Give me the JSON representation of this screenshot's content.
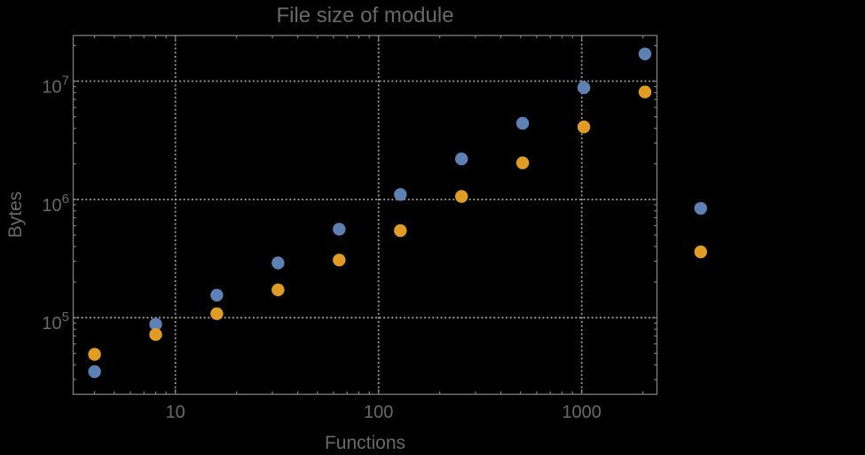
{
  "chart_data": {
    "type": "scatter",
    "title": "File size of module",
    "xlabel": "Functions",
    "ylabel": "Bytes",
    "x_scale": "log",
    "y_scale": "log",
    "x_axis_range": [
      3.1,
      2350
    ],
    "y_axis_range": [
      22500,
      24400000
    ],
    "x_major_ticks": [
      10,
      100,
      1000
    ],
    "x_major_tick_labels": [
      "10",
      "100",
      "1000"
    ],
    "y_major_ticks": [
      100000,
      1000000,
      10000000
    ],
    "y_major_tick_labels": [
      "10^5",
      "10^6",
      "10^7"
    ],
    "grid": "dotted gray lines at major ticks, on",
    "legend": "none",
    "marker": "filled circle",
    "series": [
      {
        "name": "series-1-blue",
        "color": "#5E81B5",
        "points": [
          [
            4,
            35000
          ],
          [
            8,
            88000
          ],
          [
            16,
            155000
          ],
          [
            32,
            290000
          ],
          [
            64,
            560000
          ],
          [
            128,
            1100000
          ],
          [
            256,
            2200000
          ],
          [
            512,
            4400000
          ],
          [
            1024,
            8800000
          ],
          [
            2048,
            17000000
          ],
          [
            3850,
            840000
          ]
        ]
      },
      {
        "name": "series-2-orange",
        "color": "#E19C24",
        "points": [
          [
            4,
            49000
          ],
          [
            8,
            72000
          ],
          [
            16,
            108000
          ],
          [
            32,
            172000
          ],
          [
            64,
            307000
          ],
          [
            128,
            545000
          ],
          [
            256,
            1060000
          ],
          [
            512,
            2040000
          ],
          [
            1024,
            4100000
          ],
          [
            2048,
            8100000
          ],
          [
            3850,
            360000
          ]
        ]
      }
    ]
  },
  "style": {
    "background": "#000000",
    "text_color": "#696969",
    "frame_color": "#7F7F7F",
    "grid_color": "#9B9B9B",
    "point_colors": [
      "#5E81B5",
      "#E19C24"
    ]
  }
}
